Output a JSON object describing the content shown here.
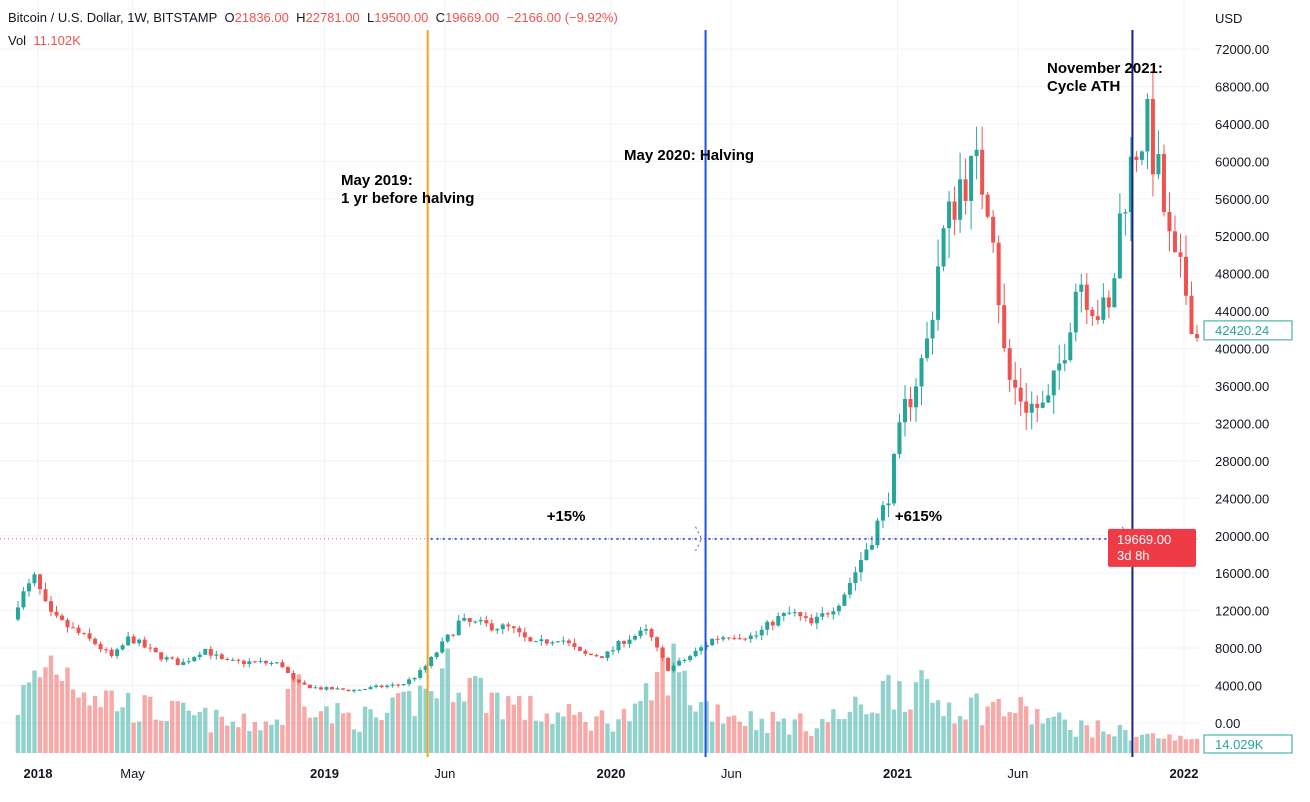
{
  "header": {
    "symbol": "Bitcoin / U.S. Dollar, 1W, BITSTAMP",
    "o_label": "O",
    "o": "21836.00",
    "h_label": "H",
    "h": "22781.00",
    "l_label": "L",
    "l": "19500.00",
    "c_label": "C",
    "c": "19669.00",
    "change": "−2166.00 (−9.92%)",
    "vol_label": "Vol",
    "vol": "11.102K"
  },
  "chart_data": {
    "type": "candlestick",
    "currency_label": "USD",
    "ylim": [
      0,
      72000
    ],
    "y_ticks": [
      "72000.00",
      "68000.00",
      "64000.00",
      "60000.00",
      "56000.00",
      "52000.00",
      "48000.00",
      "44000.00",
      "40000.00",
      "36000.00",
      "32000.00",
      "28000.00",
      "24000.00",
      "20000.00",
      "16000.00",
      "12000.00",
      "8000.00",
      "4000.00",
      "0.00"
    ],
    "x_ticks": [
      {
        "t": 2018.0,
        "label": "2018",
        "bold": true
      },
      {
        "t": 2018.33,
        "label": "May",
        "bold": false
      },
      {
        "t": 2019.0,
        "label": "2019",
        "bold": true
      },
      {
        "t": 2019.42,
        "label": "Jun",
        "bold": false
      },
      {
        "t": 2020.0,
        "label": "2020",
        "bold": true
      },
      {
        "t": 2020.42,
        "label": "Jun",
        "bold": false
      },
      {
        "t": 2021.0,
        "label": "2021",
        "bold": true
      },
      {
        "t": 2021.42,
        "label": "Jun",
        "bold": false
      },
      {
        "t": 2022.0,
        "label": "2022",
        "bold": true
      }
    ],
    "close_anchors": [
      [
        2017.93,
        13000
      ],
      [
        2017.99,
        15500
      ],
      [
        2018.04,
        11500
      ],
      [
        2018.12,
        10000
      ],
      [
        2018.2,
        8500
      ],
      [
        2018.26,
        7000
      ],
      [
        2018.32,
        9200
      ],
      [
        2018.42,
        7200
      ],
      [
        2018.5,
        6300
      ],
      [
        2018.58,
        8000
      ],
      [
        2018.65,
        6500
      ],
      [
        2018.75,
        6500
      ],
      [
        2018.85,
        6300
      ],
      [
        2018.9,
        4200
      ],
      [
        2018.98,
        3700
      ],
      [
        2019.1,
        3500
      ],
      [
        2019.2,
        3900
      ],
      [
        2019.27,
        4100
      ],
      [
        2019.33,
        5300
      ],
      [
        2019.4,
        8000
      ],
      [
        2019.47,
        10800
      ],
      [
        2019.55,
        10500
      ],
      [
        2019.65,
        10100
      ],
      [
        2019.73,
        8300
      ],
      [
        2019.82,
        9200
      ],
      [
        2019.9,
        7300
      ],
      [
        2019.98,
        7200
      ],
      [
        2020.05,
        9000
      ],
      [
        2020.13,
        9800
      ],
      [
        2020.2,
        5800
      ],
      [
        2020.27,
        7000
      ],
      [
        2020.35,
        8900
      ],
      [
        2020.42,
        9500
      ],
      [
        2020.5,
        9200
      ],
      [
        2020.57,
        11000
      ],
      [
        2020.63,
        11800
      ],
      [
        2020.7,
        10500
      ],
      [
        2020.8,
        13200
      ],
      [
        2020.88,
        18000
      ],
      [
        2020.96,
        23500
      ],
      [
        2021.02,
        33000
      ],
      [
        2021.1,
        40000
      ],
      [
        2021.15,
        51000
      ],
      [
        2021.22,
        58000
      ],
      [
        2021.28,
        59000
      ],
      [
        2021.33,
        55000
      ],
      [
        2021.38,
        37000
      ],
      [
        2021.45,
        34000
      ],
      [
        2021.52,
        33500
      ],
      [
        2021.58,
        40000
      ],
      [
        2021.63,
        48000
      ],
      [
        2021.7,
        44000
      ],
      [
        2021.74,
        43500
      ],
      [
        2021.78,
        55000
      ],
      [
        2021.83,
        61500
      ],
      [
        2021.87,
        64000
      ],
      [
        2021.92,
        57000
      ],
      [
        2021.96,
        49000
      ],
      [
        2022.0,
        47000
      ],
      [
        2022.04,
        42000
      ],
      [
        2022.07,
        37500
      ],
      [
        2022.1,
        42420
      ]
    ],
    "volume_anchors": [
      [
        2017.93,
        45
      ],
      [
        2018.05,
        85
      ],
      [
        2018.2,
        55
      ],
      [
        2018.35,
        40
      ],
      [
        2018.5,
        35
      ],
      [
        2018.7,
        25
      ],
      [
        2018.85,
        30
      ],
      [
        2018.9,
        70
      ],
      [
        2019.0,
        35
      ],
      [
        2019.2,
        30
      ],
      [
        2019.35,
        55
      ],
      [
        2019.45,
        75
      ],
      [
        2019.55,
        55
      ],
      [
        2019.75,
        35
      ],
      [
        2019.95,
        30
      ],
      [
        2020.1,
        35
      ],
      [
        2020.2,
        85
      ],
      [
        2020.3,
        45
      ],
      [
        2020.5,
        30
      ],
      [
        2020.7,
        25
      ],
      [
        2020.88,
        40
      ],
      [
        2021.0,
        65
      ],
      [
        2021.15,
        45
      ],
      [
        2021.4,
        40
      ],
      [
        2021.6,
        25
      ],
      [
        2021.8,
        18
      ],
      [
        2022.0,
        12
      ],
      [
        2022.1,
        14
      ]
    ],
    "last_price_label": "42420.24",
    "current_price_label": "19669.00",
    "current_price_value": 19669,
    "countdown": "3d 8h",
    "last_volume_label": "14.029K",
    "annotations": [
      {
        "line1": "May 2019:",
        "line2": "1 yr before halving",
        "t": 2019.36,
        "color": "#f7a21b"
      },
      {
        "line1": "May 2020: Halving",
        "line2": "",
        "t": 2020.33,
        "color": "#1e53e5"
      },
      {
        "line1": "November 2021:",
        "line2": "Cycle ATH",
        "t": 2021.82,
        "color": "#1a237e"
      }
    ],
    "measurements": [
      {
        "label": "+15%",
        "from": 2019.36,
        "to": 2020.33
      },
      {
        "label": "+615%",
        "from": 2020.33,
        "to": 2021.82
      }
    ],
    "colors": {
      "up": "#26a69a",
      "down": "#ef5350"
    }
  }
}
